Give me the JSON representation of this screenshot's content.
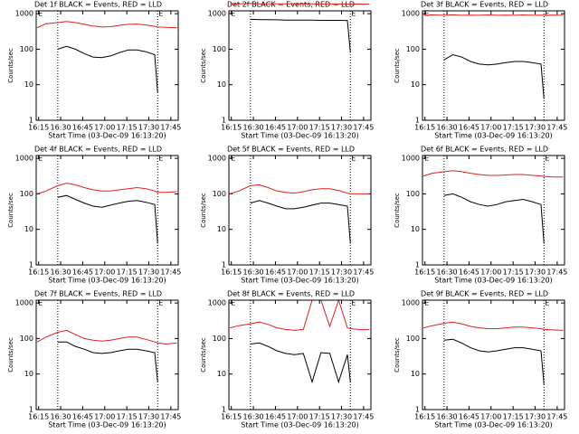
{
  "chart_data": [
    {
      "type": "line",
      "title": "Det 1f BLACK = Events, RED = LLD",
      "x_label": "Start Time (03-Dec-09 16:13:20)",
      "y_label": "Counts/sec",
      "log_y": true,
      "x": [
        974,
        980,
        988,
        994,
        1000,
        1006,
        1012,
        1018,
        1024,
        1030,
        1036,
        1042,
        1048,
        1054,
        1056,
        1062,
        1069
      ],
      "series": [
        {
          "name": "Events",
          "color": "#000000",
          "values": [
            null,
            null,
            100,
            120,
            100,
            75,
            60,
            58,
            65,
            80,
            95,
            95,
            85,
            70,
            6,
            null,
            null
          ]
        },
        {
          "name": "LLD",
          "color": "#e0201b",
          "values": [
            400,
            520,
            560,
            600,
            560,
            500,
            450,
            420,
            430,
            470,
            500,
            510,
            480,
            440,
            420,
            410,
            400
          ]
        }
      ],
      "xlim": [
        973.33,
        1070
      ],
      "xticks": [
        {
          "value": 975,
          "label": "16:15"
        },
        {
          "value": 990,
          "label": "16:30"
        },
        {
          "value": 1005,
          "label": "16:45"
        },
        {
          "value": 1020,
          "label": "17:00"
        },
        {
          "value": 1035,
          "label": "17:15"
        },
        {
          "value": 1050,
          "label": "17:30"
        },
        {
          "value": 1065,
          "label": "17:45"
        }
      ],
      "ylim": [
        1,
        1200
      ],
      "yticks": [
        1,
        10,
        100,
        1000
      ],
      "vlines": [
        988,
        1056
      ],
      "annotations": [
        {
          "x": 974,
          "label": "E"
        },
        {
          "x": 1056,
          "label": "E"
        }
      ]
    },
    {
      "type": "line",
      "title": "Det 2f BLACK = Events, RED = LLD",
      "x_label": "Start Time (03-Dec-09 16:13:20)",
      "y_label": "Counts/sec",
      "log_y": true,
      "x": [
        974,
        980,
        988,
        994,
        1000,
        1006,
        1012,
        1018,
        1024,
        1030,
        1036,
        1042,
        1048,
        1054,
        1056,
        1062,
        1069
      ],
      "series": [
        {
          "name": "Events",
          "color": "#000000",
          "values": [
            null,
            null,
            700,
            680,
            680,
            670,
            660,
            660,
            660,
            660,
            650,
            650,
            650,
            640,
            80,
            null,
            null
          ]
        },
        {
          "name": "LLD",
          "color": "#e0201b",
          "values": [
            1900,
            1900,
            1950,
            1900,
            1900,
            1900,
            1880,
            1880,
            1880,
            1880,
            1870,
            1870,
            1870,
            1860,
            1860,
            1860,
            1850
          ]
        }
      ],
      "xlim": [
        973.33,
        1070
      ],
      "xticks": [
        {
          "value": 975,
          "label": "16:15"
        },
        {
          "value": 990,
          "label": "16:30"
        },
        {
          "value": 1005,
          "label": "16:45"
        },
        {
          "value": 1020,
          "label": "17:00"
        },
        {
          "value": 1035,
          "label": "17:15"
        },
        {
          "value": 1050,
          "label": "17:30"
        },
        {
          "value": 1065,
          "label": "17:45"
        }
      ],
      "ylim": [
        1,
        1200
      ],
      "yticks": [
        1,
        10,
        100,
        1000
      ],
      "vlines": [
        988,
        1056
      ],
      "annotations": [
        {
          "x": 974,
          "label": "E"
        },
        {
          "x": 1056,
          "label": "E"
        }
      ]
    },
    {
      "type": "line",
      "title": "Det 3f BLACK = Events, RED = LLD",
      "x_label": "Start Time (03-Dec-09 16:13:20)",
      "y_label": "Counts/sec",
      "log_y": true,
      "x": [
        974,
        980,
        988,
        994,
        1000,
        1006,
        1012,
        1018,
        1024,
        1030,
        1036,
        1042,
        1048,
        1054,
        1056,
        1062,
        1069
      ],
      "series": [
        {
          "name": "Events",
          "color": "#000000",
          "values": [
            null,
            null,
            50,
            70,
            60,
            45,
            38,
            36,
            38,
            42,
            45,
            45,
            42,
            38,
            4,
            null,
            null
          ]
        },
        {
          "name": "LLD",
          "color": "#e0201b",
          "values": [
            900,
            920,
            900,
            930,
            900,
            910,
            900,
            920,
            900,
            910,
            900,
            920,
            900,
            910,
            900,
            910,
            900
          ]
        }
      ],
      "xlim": [
        973.33,
        1070
      ],
      "xticks": [
        {
          "value": 975,
          "label": "16:15"
        },
        {
          "value": 990,
          "label": "16:30"
        },
        {
          "value": 1005,
          "label": "16:45"
        },
        {
          "value": 1020,
          "label": "17:00"
        },
        {
          "value": 1035,
          "label": "17:15"
        },
        {
          "value": 1050,
          "label": "17:30"
        },
        {
          "value": 1065,
          "label": "17:45"
        }
      ],
      "ylim": [
        1,
        1200
      ],
      "yticks": [
        1,
        10,
        100,
        1000
      ],
      "vlines": [
        988,
        1056
      ],
      "annotations": [
        {
          "x": 974,
          "label": "E"
        },
        {
          "x": 1056,
          "label": "E"
        }
      ]
    },
    {
      "type": "line",
      "title": "Det 4f BLACK = Events, RED = LLD",
      "x_label": "Start Time (03-Dec-09 16:13:20)",
      "y_label": "Counts/sec",
      "log_y": true,
      "x": [
        974,
        980,
        988,
        994,
        1000,
        1006,
        1012,
        1018,
        1024,
        1030,
        1036,
        1042,
        1048,
        1054,
        1056,
        1062,
        1069
      ],
      "series": [
        {
          "name": "Events",
          "color": "#000000",
          "values": [
            null,
            null,
            80,
            90,
            70,
            55,
            45,
            42,
            48,
            55,
            62,
            65,
            58,
            50,
            4,
            null,
            null
          ]
        },
        {
          "name": "LLD",
          "color": "#e0201b",
          "values": [
            100,
            120,
            170,
            200,
            180,
            150,
            130,
            120,
            120,
            130,
            140,
            150,
            140,
            120,
            110,
            110,
            115
          ]
        }
      ],
      "xlim": [
        973.33,
        1070
      ],
      "xticks": [
        {
          "value": 975,
          "label": "16:15"
        },
        {
          "value": 990,
          "label": "16:30"
        },
        {
          "value": 1005,
          "label": "16:45"
        },
        {
          "value": 1020,
          "label": "17:00"
        },
        {
          "value": 1035,
          "label": "17:15"
        },
        {
          "value": 1050,
          "label": "17:30"
        },
        {
          "value": 1065,
          "label": "17:45"
        }
      ],
      "ylim": [
        1,
        1200
      ],
      "yticks": [
        1,
        10,
        100,
        1000
      ],
      "vlines": [
        988,
        1056
      ],
      "annotations": [
        {
          "x": 974,
          "label": "E"
        },
        {
          "x": 1056,
          "label": "E"
        }
      ]
    },
    {
      "type": "line",
      "title": "Det 5f BLACK = Events, RED = LLD",
      "x_label": "Start Time (03-Dec-09 16:13:20)",
      "y_label": "Counts/sec",
      "log_y": true,
      "x": [
        974,
        980,
        988,
        994,
        1000,
        1006,
        1012,
        1018,
        1024,
        1030,
        1036,
        1042,
        1048,
        1054,
        1056,
        1062,
        1069
      ],
      "series": [
        {
          "name": "Events",
          "color": "#000000",
          "values": [
            null,
            null,
            55,
            65,
            55,
            45,
            38,
            38,
            42,
            48,
            55,
            55,
            50,
            45,
            4,
            null,
            null
          ]
        },
        {
          "name": "LLD",
          "color": "#e0201b",
          "values": [
            100,
            120,
            170,
            180,
            150,
            120,
            110,
            105,
            115,
            130,
            140,
            140,
            125,
            105,
            100,
            100,
            100
          ]
        }
      ],
      "xlim": [
        973.33,
        1070
      ],
      "xticks": [
        {
          "value": 975,
          "label": "16:15"
        },
        {
          "value": 990,
          "label": "16:30"
        },
        {
          "value": 1005,
          "label": "16:45"
        },
        {
          "value": 1020,
          "label": "17:00"
        },
        {
          "value": 1035,
          "label": "17:15"
        },
        {
          "value": 1050,
          "label": "17:30"
        },
        {
          "value": 1065,
          "label": "17:45"
        }
      ],
      "ylim": [
        1,
        1200
      ],
      "yticks": [
        1,
        10,
        100,
        1000
      ],
      "vlines": [
        988,
        1056
      ],
      "annotations": [
        {
          "x": 974,
          "label": "E"
        },
        {
          "x": 1056,
          "label": "E"
        }
      ]
    },
    {
      "type": "line",
      "title": "Det 6f BLACK = Events, RED = LLD",
      "x_label": "Start Time (03-Dec-09 16:13:20)",
      "y_label": "Counts/sec",
      "log_y": true,
      "x": [
        974,
        980,
        988,
        994,
        1000,
        1006,
        1012,
        1018,
        1024,
        1030,
        1036,
        1042,
        1048,
        1054,
        1056,
        1062,
        1069
      ],
      "series": [
        {
          "name": "Events",
          "color": "#000000",
          "values": [
            null,
            null,
            90,
            100,
            80,
            60,
            50,
            45,
            50,
            60,
            65,
            70,
            60,
            50,
            4,
            null,
            null
          ]
        },
        {
          "name": "LLD",
          "color": "#e0201b",
          "values": [
            320,
            380,
            420,
            450,
            420,
            380,
            350,
            330,
            330,
            340,
            350,
            350,
            330,
            320,
            310,
            300,
            300
          ]
        }
      ],
      "xlim": [
        973.33,
        1070
      ],
      "xticks": [
        {
          "value": 975,
          "label": "16:15"
        },
        {
          "value": 990,
          "label": "16:30"
        },
        {
          "value": 1005,
          "label": "16:45"
        },
        {
          "value": 1020,
          "label": "17:00"
        },
        {
          "value": 1035,
          "label": "17:15"
        },
        {
          "value": 1050,
          "label": "17:30"
        },
        {
          "value": 1065,
          "label": "17:45"
        }
      ],
      "ylim": [
        1,
        1200
      ],
      "yticks": [
        1,
        10,
        100,
        1000
      ],
      "vlines": [
        988,
        1056
      ],
      "annotations": [
        {
          "x": 974,
          "label": "E"
        },
        {
          "x": 1056,
          "label": "E"
        }
      ]
    },
    {
      "type": "line",
      "title": "Det 7f BLACK = Events, RED = LLD",
      "x_label": "Start Time (03-Dec-09 16:13:20)",
      "y_label": "Counts/sec",
      "log_y": true,
      "x": [
        974,
        980,
        988,
        994,
        1000,
        1006,
        1012,
        1018,
        1024,
        1030,
        1036,
        1042,
        1048,
        1054,
        1056,
        1062,
        1069
      ],
      "series": [
        {
          "name": "Events",
          "color": "#000000",
          "values": [
            null,
            null,
            80,
            80,
            60,
            50,
            40,
            38,
            40,
            45,
            50,
            50,
            45,
            40,
            6,
            null,
            null
          ]
        },
        {
          "name": "LLD",
          "color": "#e0201b",
          "values": [
            80,
            110,
            150,
            170,
            130,
            100,
            90,
            85,
            90,
            100,
            110,
            110,
            95,
            80,
            75,
            70,
            75
          ]
        }
      ],
      "xlim": [
        973.33,
        1070
      ],
      "xticks": [
        {
          "value": 975,
          "label": "16:15"
        },
        {
          "value": 990,
          "label": "16:30"
        },
        {
          "value": 1005,
          "label": "16:45"
        },
        {
          "value": 1020,
          "label": "17:00"
        },
        {
          "value": 1035,
          "label": "17:15"
        },
        {
          "value": 1050,
          "label": "17:30"
        },
        {
          "value": 1065,
          "label": "17:45"
        }
      ],
      "ylim": [
        1,
        1200
      ],
      "yticks": [
        1,
        10,
        100,
        1000
      ],
      "vlines": [
        988,
        1056
      ],
      "annotations": [
        {
          "x": 974,
          "label": "E"
        },
        {
          "x": 1056,
          "label": "E"
        }
      ]
    },
    {
      "type": "line",
      "title": "Det 8f BLACK = Events, RED = LLD",
      "x_label": "Start Time (03-Dec-09 16:13:20)",
      "y_label": "Counts/sec",
      "log_y": true,
      "x": [
        974,
        980,
        988,
        994,
        1000,
        1006,
        1012,
        1018,
        1024,
        1030,
        1036,
        1042,
        1048,
        1054,
        1056,
        1062,
        1069
      ],
      "series": [
        {
          "name": "Events",
          "color": "#000000",
          "values": [
            null,
            null,
            70,
            75,
            60,
            45,
            38,
            35,
            38,
            6,
            40,
            38,
            6,
            35,
            6,
            null,
            null
          ]
        },
        {
          "name": "LLD",
          "color": "#e0201b",
          "values": [
            200,
            230,
            260,
            290,
            250,
            200,
            180,
            170,
            180,
            1200,
            1200,
            220,
            1200,
            200,
            190,
            180,
            180
          ]
        }
      ],
      "xlim": [
        973.33,
        1070
      ],
      "xticks": [
        {
          "value": 975,
          "label": "16:15"
        },
        {
          "value": 990,
          "label": "16:30"
        },
        {
          "value": 1005,
          "label": "16:45"
        },
        {
          "value": 1020,
          "label": "17:00"
        },
        {
          "value": 1035,
          "label": "17:15"
        },
        {
          "value": 1050,
          "label": "17:30"
        },
        {
          "value": 1065,
          "label": "17:45"
        }
      ],
      "ylim": [
        1,
        1200
      ],
      "yticks": [
        1,
        10,
        100,
        1000
      ],
      "vlines": [
        988,
        1056
      ],
      "annotations": [
        {
          "x": 974,
          "label": "E"
        },
        {
          "x": 1056,
          "label": "E"
        }
      ]
    },
    {
      "type": "line",
      "title": "Det 9f BLACK = Events, RED = LLD",
      "x_label": "Start Time (03-Dec-09 16:13:20)",
      "y_label": "Counts/sec",
      "log_y": true,
      "x": [
        974,
        980,
        988,
        994,
        1000,
        1006,
        1012,
        1018,
        1024,
        1030,
        1036,
        1042,
        1048,
        1054,
        1056,
        1062,
        1069
      ],
      "series": [
        {
          "name": "Events",
          "color": "#000000",
          "values": [
            null,
            null,
            90,
            95,
            75,
            55,
            45,
            42,
            45,
            50,
            55,
            55,
            50,
            45,
            5,
            null,
            null
          ]
        },
        {
          "name": "LLD",
          "color": "#e0201b",
          "values": [
            200,
            230,
            270,
            290,
            260,
            220,
            200,
            190,
            190,
            200,
            210,
            210,
            200,
            190,
            180,
            175,
            170
          ]
        }
      ],
      "xlim": [
        973.33,
        1070
      ],
      "xticks": [
        {
          "value": 975,
          "label": "16:15"
        },
        {
          "value": 990,
          "label": "16:30"
        },
        {
          "value": 1005,
          "label": "16:45"
        },
        {
          "value": 1020,
          "label": "17:00"
        },
        {
          "value": 1035,
          "label": "17:15"
        },
        {
          "value": 1050,
          "label": "17:30"
        },
        {
          "value": 1065,
          "label": "17:45"
        }
      ],
      "ylim": [
        1,
        1200
      ],
      "yticks": [
        1,
        10,
        100,
        1000
      ],
      "vlines": [
        988,
        1056
      ],
      "annotations": [
        {
          "x": 974,
          "label": "E"
        },
        {
          "x": 1056,
          "label": "E"
        }
      ]
    }
  ]
}
